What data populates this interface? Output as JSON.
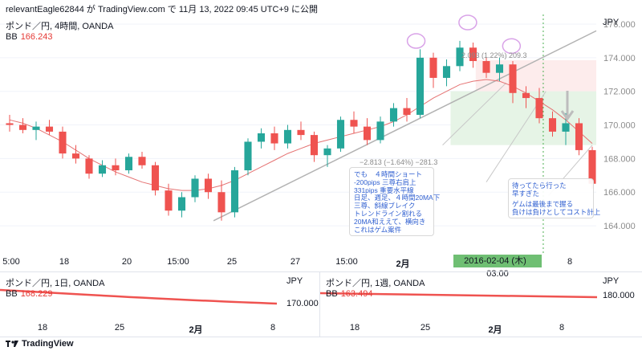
{
  "header": {
    "text": "relevantEagle62844 が TradingView.com で 11月 13, 2022 09:45 UTC+9 に公開"
  },
  "main_panel": {
    "title": "ポンド／円, 4時間, OANDA",
    "bb_label": "BB",
    "bb_value": "166.243",
    "currency": "JPY",
    "x_labels": [
      "5:00",
      "18",
      "20",
      "15:00",
      "25",
      "27",
      "15:00",
      "2月",
      "8"
    ],
    "date_marker": "2016-02-04 (木)   03:00",
    "measure_up": "2.093 (1.22%) 209.3",
    "measure_down": "−2.813 (−1.64%) −281.3",
    "annotation_main": [
      "でも　４時間ショート",
      "-200pips 三尊右肩上",
      "331pips 重要水平線",
      "",
      "日足、週足、４時間20MA下",
      "三尊、斜線ブレイク",
      "トレンドライン割れる",
      "20MA和ええて、横向き",
      "",
      "これはゲム案件"
    ],
    "annotation_right": [
      "待ってたら行った",
      "早すぎた",
      "",
      "ゲムは最後まで握る",
      "負けは負けとしてコスト計上"
    ]
  },
  "sub_panels": [
    {
      "title": "ポンド／円, 1日, OANDA",
      "bb_label": "BB",
      "bb_value": "168.229",
      "currency": "JPY",
      "price_label": "170.000",
      "x_labels": [
        "18",
        "25",
        "2月",
        "8"
      ]
    },
    {
      "title": "ポンド／円, 1週, OANDA",
      "bb_label": "BB",
      "bb_value": "163.494",
      "currency": "JPY",
      "price_label": "180.000",
      "x_labels": [
        "18",
        "25",
        "2月",
        "8"
      ]
    }
  ],
  "footer": {
    "brand": "TradingView"
  },
  "colors": {
    "up": "#26a69a",
    "down": "#ef5350",
    "ma": "#e57373",
    "trend": "#b2b2b2",
    "green_zone": "#e6f4e6",
    "red_zone": "#fdecec",
    "date_box": "#6fbf73"
  },
  "chart_data": {
    "type": "candlestick",
    "title": "ポンド／円, 4時間, OANDA",
    "ylim": [
      163.0,
      176.0
    ],
    "y_ticks": [
      164.0,
      166.0,
      168.0,
      170.0,
      172.0,
      174.0,
      176.0
    ],
    "series": [
      {
        "name": "BB",
        "values": [
          170.3,
          170.1,
          169.8,
          169.4,
          169.0,
          168.5,
          168.0,
          167.6,
          167.2,
          166.9,
          166.6,
          166.4,
          166.2,
          166.1,
          166.1,
          166.2,
          166.4,
          166.7,
          167.1,
          167.5,
          167.9,
          168.3,
          168.6,
          168.9,
          169.1,
          169.3,
          169.5,
          169.7,
          169.9,
          170.2,
          170.6,
          171.1,
          171.6,
          172.0,
          172.4,
          172.6,
          172.7,
          172.6,
          172.3,
          171.9,
          171.4,
          170.9,
          170.3,
          169.6,
          168.9
        ]
      },
      {
        "name": "candles",
        "ohlc": [
          [
            170.1,
            170.6,
            169.6,
            170.0
          ],
          [
            170.0,
            170.4,
            169.5,
            169.7
          ],
          [
            169.7,
            170.2,
            169.1,
            169.9
          ],
          [
            169.9,
            170.3,
            169.4,
            169.6
          ],
          [
            169.6,
            169.9,
            168.0,
            168.3
          ],
          [
            168.3,
            168.8,
            167.7,
            168.0
          ],
          [
            168.0,
            168.2,
            166.8,
            167.1
          ],
          [
            167.1,
            167.9,
            166.9,
            167.6
          ],
          [
            167.6,
            168.0,
            167.0,
            167.3
          ],
          [
            167.3,
            168.3,
            167.1,
            168.1
          ],
          [
            168.1,
            168.4,
            167.4,
            167.6
          ],
          [
            167.6,
            167.8,
            165.8,
            166.1
          ],
          [
            166.1,
            166.5,
            164.6,
            164.9
          ],
          [
            164.9,
            166.0,
            164.5,
            165.7
          ],
          [
            165.7,
            167.0,
            165.4,
            166.8
          ],
          [
            166.8,
            167.1,
            165.6,
            166.0
          ],
          [
            166.0,
            166.7,
            164.3,
            164.8
          ],
          [
            164.8,
            167.5,
            164.5,
            167.3
          ],
          [
            167.3,
            169.2,
            167.0,
            169.0
          ],
          [
            169.0,
            169.8,
            168.6,
            169.5
          ],
          [
            169.5,
            169.9,
            168.5,
            168.9
          ],
          [
            168.9,
            170.0,
            168.6,
            169.7
          ],
          [
            169.7,
            170.2,
            169.1,
            169.4
          ],
          [
            169.4,
            169.6,
            167.8,
            168.2
          ],
          [
            168.2,
            168.8,
            167.5,
            168.6
          ],
          [
            168.6,
            170.5,
            168.4,
            170.3
          ],
          [
            170.3,
            170.8,
            169.5,
            169.9
          ],
          [
            169.9,
            170.4,
            168.8,
            169.1
          ],
          [
            169.1,
            170.5,
            168.9,
            170.2
          ],
          [
            170.2,
            171.3,
            169.9,
            171.0
          ],
          [
            171.0,
            171.6,
            170.2,
            170.6
          ],
          [
            170.6,
            174.5,
            170.4,
            174.0
          ],
          [
            174.0,
            174.3,
            172.2,
            172.8
          ],
          [
            172.8,
            173.9,
            172.3,
            173.5
          ],
          [
            173.5,
            175.0,
            173.2,
            174.6
          ],
          [
            174.6,
            174.9,
            173.4,
            173.8
          ],
          [
            173.8,
            174.0,
            172.8,
            173.1
          ],
          [
            173.1,
            174.0,
            172.6,
            173.6
          ],
          [
            173.6,
            173.8,
            171.3,
            171.9
          ],
          [
            171.9,
            172.3,
            171.0,
            171.6
          ],
          [
            171.6,
            172.2,
            170.1,
            170.4
          ],
          [
            170.4,
            170.8,
            169.3,
            169.6
          ],
          [
            169.6,
            170.7,
            168.8,
            170.1
          ],
          [
            170.1,
            170.4,
            168.2,
            168.5
          ],
          [
            168.5,
            168.7,
            166.2,
            166.5
          ]
        ]
      }
    ],
    "levels": [
      {
        "value": 172.0
      },
      {
        "value": 168.8
      }
    ]
  }
}
